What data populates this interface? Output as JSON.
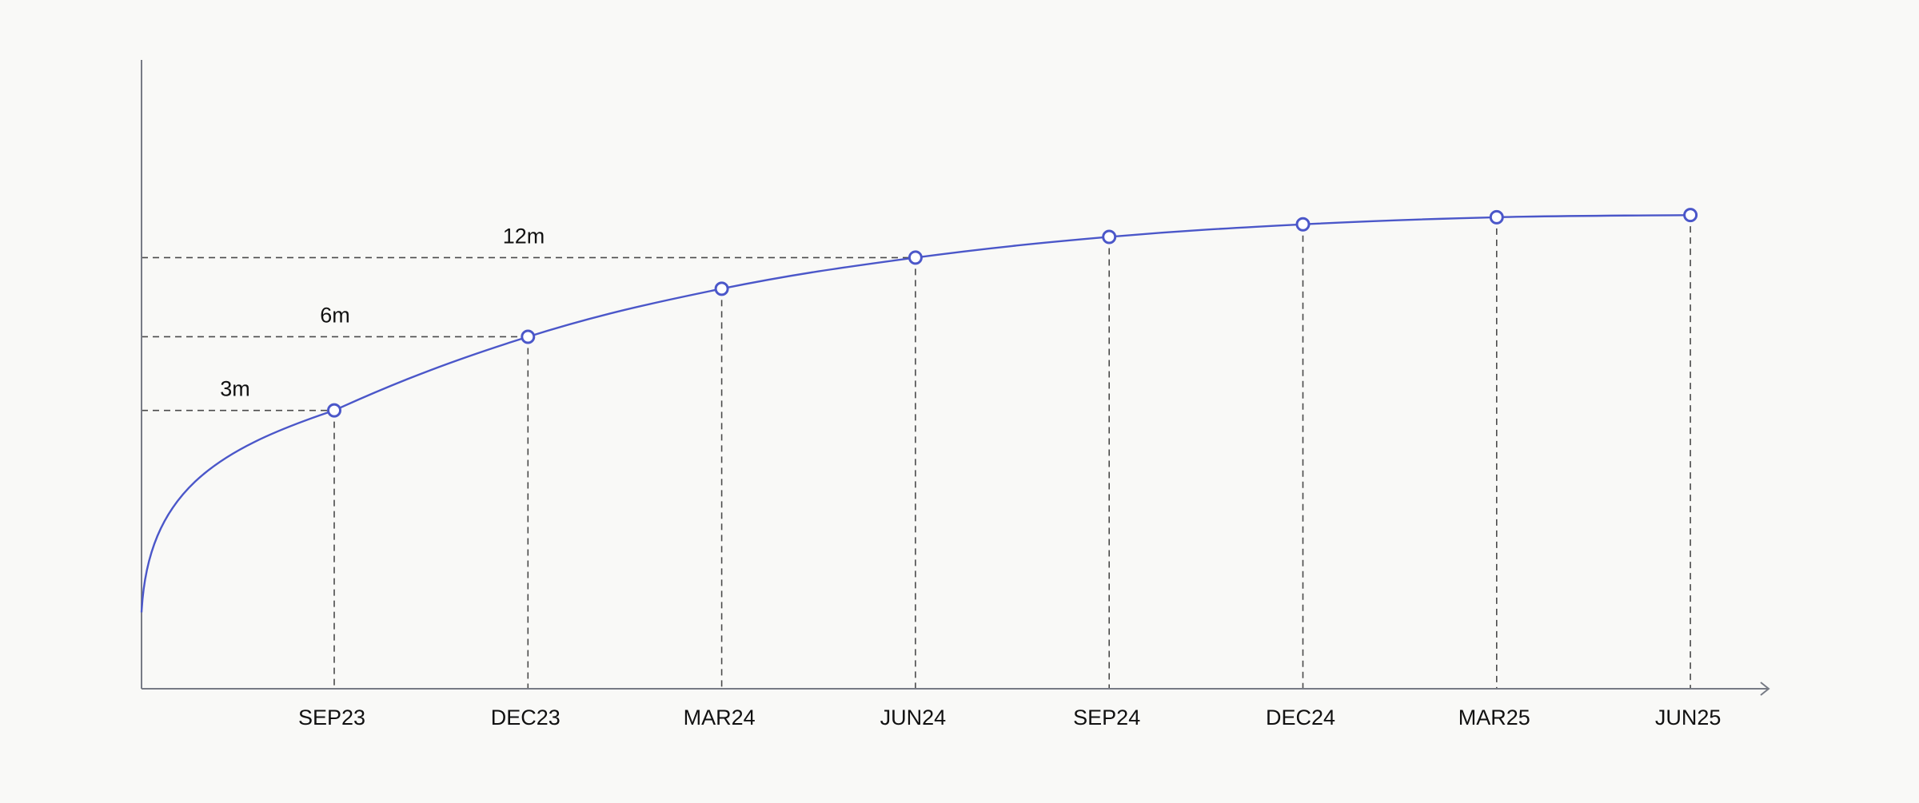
{
  "chart_data": {
    "type": "line",
    "title": "",
    "xlabel": "",
    "ylabel": "",
    "grid": false,
    "legend": "none",
    "x": [
      "SEP23",
      "DEC23",
      "MAR24",
      "JUN24",
      "SEP24",
      "DEC24",
      "MAR25",
      "JUN25"
    ],
    "series": [
      {
        "name": "",
        "color": "#4b57c9",
        "start_value": 0.14,
        "values": [
          0.51,
          0.645,
          0.733,
          0.79,
          0.828,
          0.851,
          0.864,
          0.868
        ]
      }
    ],
    "ylim": [
      0,
      1
    ],
    "annotations": [
      {
        "index": 0,
        "label": "3m"
      },
      {
        "index": 1,
        "label": "6m"
      },
      {
        "index": 3,
        "label": "12m"
      }
    ],
    "colors": {
      "line": "#4b57c9",
      "marker_fill": "#ffffff",
      "axis": "#777b85",
      "guide": "#4a4a4a",
      "text": "#111111",
      "background": "#f9f9f7"
    }
  }
}
